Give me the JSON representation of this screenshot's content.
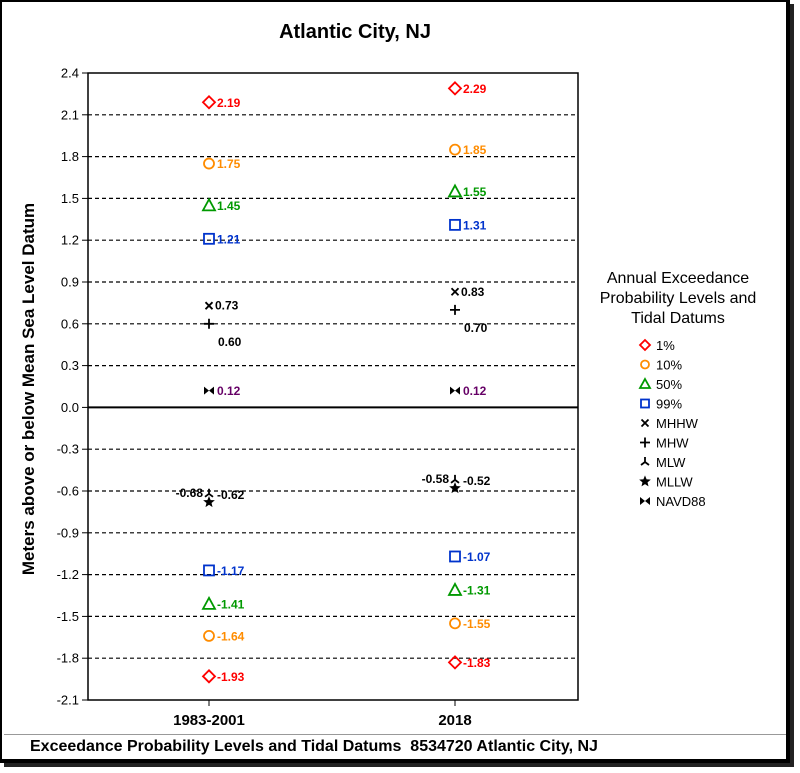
{
  "footer": "Exceedance Probability Levels and Tidal Datums  8534720 Atlantic City, NJ",
  "chart_data": {
    "type": "scatter",
    "title": "Atlantic City, NJ",
    "xlabel": "",
    "ylabel": "Meters above or below Mean Sea Level Datum",
    "categories": [
      "1983-2001",
      "2018"
    ],
    "ylim": [
      -2.1,
      2.4
    ],
    "yticks": [
      "2.4",
      "2.1",
      "1.8",
      "1.5",
      "1.2",
      "0.9",
      "0.6",
      "0.3",
      "0.0",
      "-0.3",
      "-0.6",
      "-0.9",
      "-1.2",
      "-1.5",
      "-1.8",
      "-2.1"
    ],
    "grid": "dashed horizontal",
    "legend_title": [
      "Annual Exceedance",
      "Probability Levels and",
      "Tidal Datums"
    ],
    "legend_position": "right",
    "series": [
      {
        "name": "1%",
        "marker": "diamond",
        "color": "#ff0000",
        "values": [
          2.19,
          2.29
        ],
        "labels": [
          "2.19",
          "2.29"
        ]
      },
      {
        "name": "10%",
        "marker": "circle",
        "color": "#ff8c00",
        "values": [
          1.75,
          1.85
        ],
        "labels": [
          "1.75",
          "1.85"
        ]
      },
      {
        "name": "50%",
        "marker": "triangle",
        "color": "#009900",
        "values": [
          1.45,
          1.55
        ],
        "labels": [
          "1.45",
          "1.55"
        ]
      },
      {
        "name": "99%",
        "marker": "square",
        "color": "#0033cc",
        "values": [
          1.21,
          1.31
        ],
        "labels": [
          "1.21",
          "1.31"
        ]
      },
      {
        "name": "MHHW",
        "marker": "x",
        "color": "#000000",
        "values": [
          0.73,
          0.83
        ],
        "labels": [
          "0.73",
          "0.83"
        ]
      },
      {
        "name": "MHW",
        "marker": "plus",
        "color": "#000000",
        "values": [
          0.6,
          0.7
        ],
        "labels": [
          "0.60",
          "0.70"
        ]
      },
      {
        "name": "MLW",
        "marker": "tri",
        "color": "#000000",
        "values": [
          -0.62,
          -0.52
        ],
        "labels": [
          "-0.62",
          "-0.52"
        ]
      },
      {
        "name": "MLLW",
        "marker": "star",
        "color": "#000000",
        "values": [
          -0.68,
          -0.58
        ],
        "labels": [
          "-0.68",
          "-0.58"
        ]
      },
      {
        "name": "NAVD88",
        "marker": "bowtie",
        "color": "#000000",
        "values": [
          0.12,
          0.12
        ],
        "labels": [
          "0.12",
          "0.12"
        ],
        "label_color": "#660066"
      },
      {
        "name": "99%",
        "marker": "square",
        "color": "#0033cc",
        "values": [
          -1.17,
          -1.07
        ],
        "labels": [
          "-1.17",
          "-1.07"
        ],
        "legend": false
      },
      {
        "name": "50%",
        "marker": "triangle",
        "color": "#009900",
        "values": [
          -1.41,
          -1.31
        ],
        "labels": [
          "-1.41",
          "-1.31"
        ],
        "legend": false
      },
      {
        "name": "10%",
        "marker": "circle",
        "color": "#ff8c00",
        "values": [
          -1.64,
          -1.55
        ],
        "labels": [
          "-1.64",
          "-1.55"
        ],
        "legend": false
      },
      {
        "name": "1%",
        "marker": "diamond",
        "color": "#ff0000",
        "values": [
          -1.93,
          -1.83
        ],
        "labels": [
          "-1.93",
          "-1.83"
        ],
        "legend": false
      }
    ]
  }
}
